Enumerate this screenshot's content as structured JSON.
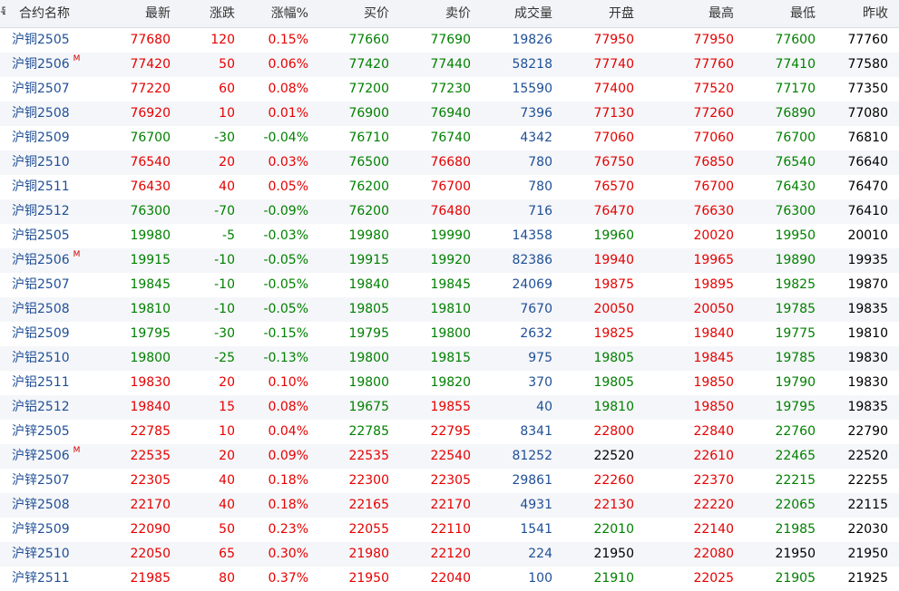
{
  "header": {
    "edge_char": "号",
    "name": "合约名称",
    "last": "最新",
    "chg": "涨跌",
    "pct": "涨幅%",
    "bid": "买价",
    "ask": "卖价",
    "vol": "成交量",
    "open": "开盘",
    "high": "最高",
    "low": "最低",
    "prev": "昨收"
  },
  "colors": {
    "up": "#e60000",
    "down": "#008000",
    "flat": "#000000",
    "name": "#1f4f96",
    "main_mark": "#d00000"
  },
  "rows": [
    {
      "name": "沪铜2505",
      "mark": "",
      "last": "77680",
      "chg": "120",
      "pct": "0.15%",
      "bid": "77660",
      "ask": "77690",
      "vol": "19826",
      "open": "77950",
      "high": "77950",
      "low": "77600",
      "prev": "77760"
    },
    {
      "name": "沪铜2506",
      "mark": "M",
      "last": "77420",
      "chg": "50",
      "pct": "0.06%",
      "bid": "77420",
      "ask": "77440",
      "vol": "58218",
      "open": "77740",
      "high": "77760",
      "low": "77410",
      "prev": "77580"
    },
    {
      "name": "沪铜2507",
      "mark": "",
      "last": "77220",
      "chg": "60",
      "pct": "0.08%",
      "bid": "77200",
      "ask": "77230",
      "vol": "15590",
      "open": "77400",
      "high": "77520",
      "low": "77170",
      "prev": "77350"
    },
    {
      "name": "沪铜2508",
      "mark": "",
      "last": "76920",
      "chg": "10",
      "pct": "0.01%",
      "bid": "76900",
      "ask": "76940",
      "vol": "7396",
      "open": "77130",
      "high": "77260",
      "low": "76890",
      "prev": "77080"
    },
    {
      "name": "沪铜2509",
      "mark": "",
      "last": "76700",
      "chg": "-30",
      "pct": "-0.04%",
      "bid": "76710",
      "ask": "76740",
      "vol": "4342",
      "open": "77060",
      "high": "77060",
      "low": "76700",
      "prev": "76810"
    },
    {
      "name": "沪铜2510",
      "mark": "",
      "last": "76540",
      "chg": "20",
      "pct": "0.03%",
      "bid": "76500",
      "ask": "76680",
      "vol": "780",
      "open": "76750",
      "high": "76850",
      "low": "76540",
      "prev": "76640"
    },
    {
      "name": "沪铜2511",
      "mark": "",
      "last": "76430",
      "chg": "40",
      "pct": "0.05%",
      "bid": "76200",
      "ask": "76700",
      "vol": "780",
      "open": "76570",
      "high": "76700",
      "low": "76430",
      "prev": "76470"
    },
    {
      "name": "沪铜2512",
      "mark": "",
      "last": "76300",
      "chg": "-70",
      "pct": "-0.09%",
      "bid": "76200",
      "ask": "76480",
      "vol": "716",
      "open": "76470",
      "high": "76630",
      "low": "76300",
      "prev": "76410"
    },
    {
      "name": "沪铝2505",
      "mark": "",
      "last": "19980",
      "chg": "-5",
      "pct": "-0.03%",
      "bid": "19980",
      "ask": "19990",
      "vol": "14358",
      "open": "19960",
      "high": "20020",
      "low": "19950",
      "prev": "20010"
    },
    {
      "name": "沪铝2506",
      "mark": "M",
      "last": "19915",
      "chg": "-10",
      "pct": "-0.05%",
      "bid": "19915",
      "ask": "19920",
      "vol": "82386",
      "open": "19940",
      "high": "19965",
      "low": "19890",
      "prev": "19935"
    },
    {
      "name": "沪铝2507",
      "mark": "",
      "last": "19845",
      "chg": "-10",
      "pct": "-0.05%",
      "bid": "19840",
      "ask": "19845",
      "vol": "24069",
      "open": "19875",
      "high": "19895",
      "low": "19825",
      "prev": "19870"
    },
    {
      "name": "沪铝2508",
      "mark": "",
      "last": "19810",
      "chg": "-10",
      "pct": "-0.05%",
      "bid": "19805",
      "ask": "19810",
      "vol": "7670",
      "open": "20050",
      "high": "20050",
      "low": "19785",
      "prev": "19835"
    },
    {
      "name": "沪铝2509",
      "mark": "",
      "last": "19795",
      "chg": "-30",
      "pct": "-0.15%",
      "bid": "19795",
      "ask": "19800",
      "vol": "2632",
      "open": "19825",
      "high": "19840",
      "low": "19775",
      "prev": "19810"
    },
    {
      "name": "沪铝2510",
      "mark": "",
      "last": "19800",
      "chg": "-25",
      "pct": "-0.13%",
      "bid": "19800",
      "ask": "19815",
      "vol": "975",
      "open": "19805",
      "high": "19845",
      "low": "19785",
      "prev": "19830"
    },
    {
      "name": "沪铝2511",
      "mark": "",
      "last": "19830",
      "chg": "20",
      "pct": "0.10%",
      "bid": "19800",
      "ask": "19820",
      "vol": "370",
      "open": "19805",
      "high": "19850",
      "low": "19790",
      "prev": "19830"
    },
    {
      "name": "沪铝2512",
      "mark": "",
      "last": "19840",
      "chg": "15",
      "pct": "0.08%",
      "bid": "19675",
      "ask": "19855",
      "vol": "40",
      "open": "19810",
      "high": "19850",
      "low": "19795",
      "prev": "19835"
    },
    {
      "name": "沪锌2505",
      "mark": "",
      "last": "22785",
      "chg": "10",
      "pct": "0.04%",
      "bid": "22785",
      "ask": "22795",
      "vol": "8341",
      "open": "22800",
      "high": "22840",
      "low": "22760",
      "prev": "22790"
    },
    {
      "name": "沪锌2506",
      "mark": "M",
      "last": "22535",
      "chg": "20",
      "pct": "0.09%",
      "bid": "22535",
      "ask": "22540",
      "vol": "81252",
      "open": "22520",
      "high": "22610",
      "low": "22465",
      "prev": "22520"
    },
    {
      "name": "沪锌2507",
      "mark": "",
      "last": "22305",
      "chg": "40",
      "pct": "0.18%",
      "bid": "22300",
      "ask": "22305",
      "vol": "29861",
      "open": "22260",
      "high": "22370",
      "low": "22215",
      "prev": "22255"
    },
    {
      "name": "沪锌2508",
      "mark": "",
      "last": "22170",
      "chg": "40",
      "pct": "0.18%",
      "bid": "22165",
      "ask": "22170",
      "vol": "4931",
      "open": "22130",
      "high": "22220",
      "low": "22065",
      "prev": "22115"
    },
    {
      "name": "沪锌2509",
      "mark": "",
      "last": "22090",
      "chg": "50",
      "pct": "0.23%",
      "bid": "22055",
      "ask": "22110",
      "vol": "1541",
      "open": "22010",
      "high": "22140",
      "low": "21985",
      "prev": "22030"
    },
    {
      "name": "沪锌2510",
      "mark": "",
      "last": "22050",
      "chg": "65",
      "pct": "0.30%",
      "bid": "21980",
      "ask": "22120",
      "vol": "224",
      "open": "21950",
      "high": "22080",
      "low": "21950",
      "prev": "21950"
    },
    {
      "name": "沪锌2511",
      "mark": "",
      "last": "21985",
      "chg": "80",
      "pct": "0.37%",
      "bid": "21950",
      "ask": "22040",
      "vol": "100",
      "open": "21910",
      "high": "22025",
      "low": "21905",
      "prev": "21925"
    }
  ]
}
